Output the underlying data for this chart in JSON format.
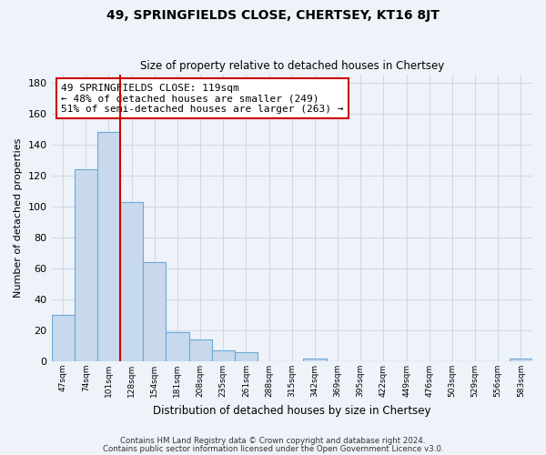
{
  "title": "49, SPRINGFIELDS CLOSE, CHERTSEY, KT16 8JT",
  "subtitle": "Size of property relative to detached houses in Chertsey",
  "xlabel": "Distribution of detached houses by size in Chertsey",
  "ylabel": "Number of detached properties",
  "bin_labels": [
    "47sqm",
    "74sqm",
    "101sqm",
    "128sqm",
    "154sqm",
    "181sqm",
    "208sqm",
    "235sqm",
    "261sqm",
    "288sqm",
    "315sqm",
    "342sqm",
    "369sqm",
    "395sqm",
    "422sqm",
    "449sqm",
    "476sqm",
    "503sqm",
    "529sqm",
    "556sqm",
    "583sqm"
  ],
  "bar_heights": [
    30,
    124,
    148,
    103,
    64,
    19,
    14,
    7,
    6,
    0,
    0,
    2,
    0,
    0,
    0,
    0,
    0,
    0,
    0,
    0,
    2
  ],
  "bar_color": "#c8d9ee",
  "bar_edge_color": "#6aaad4",
  "vline_x_bar_idx": 2,
  "vline_color": "#cc0000",
  "annotation_line1": "49 SPRINGFIELDS CLOSE: 119sqm",
  "annotation_line2": "← 48% of detached houses are smaller (249)",
  "annotation_line3": "51% of semi-detached houses are larger (263) →",
  "annotation_box_color": "#ffffff",
  "annotation_box_edge": "#cc0000",
  "ylim": [
    0,
    185
  ],
  "yticks": [
    0,
    20,
    40,
    60,
    80,
    100,
    120,
    140,
    160,
    180
  ],
  "footnote1": "Contains HM Land Registry data © Crown copyright and database right 2024.",
  "footnote2": "Contains public sector information licensed under the Open Government Licence v3.0.",
  "background_color": "#eef2f9",
  "grid_color": "#d0d8e8"
}
